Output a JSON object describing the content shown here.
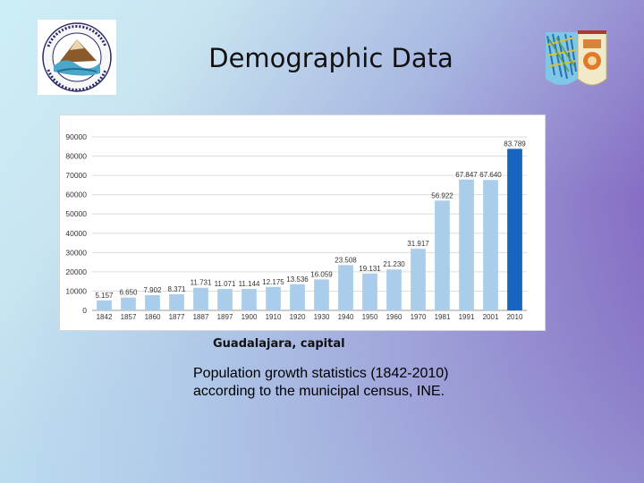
{
  "slide": {
    "title": "Demographic Data",
    "caption_city": "Guadalajara, capital",
    "caption_line1": "Population growth statistics (1842-2010)",
    "caption_line2": "according to the municipal census, INE."
  },
  "logos": {
    "left": "school-network-seal",
    "right": "guadalajara-coat-of-arms"
  },
  "colors": {
    "bar": "#aacdec",
    "bar_highlight": "#1865c0",
    "grid": "#dddddd",
    "axis_text": "#333333"
  },
  "chart_data": {
    "type": "bar",
    "categories": [
      "1842",
      "1857",
      "1860",
      "1877",
      "1887",
      "1897",
      "1900",
      "1910",
      "1920",
      "1930",
      "1940",
      "1950",
      "1960",
      "1970",
      "1981",
      "1991",
      "2001",
      "2010"
    ],
    "values": [
      5157,
      6650,
      7902,
      8371,
      11731,
      11071,
      11144,
      12175,
      13536,
      16059,
      23508,
      19131,
      21230,
      31917,
      56922,
      67847,
      67640,
      83789
    ],
    "value_labels": [
      "5.157",
      "6.650",
      "7.902",
      "8.371",
      "11.731",
      "11.071",
      "11.144",
      "12.175",
      "13.536",
      "16.059",
      "23.508",
      "19.131",
      "21.230",
      "31.917",
      "56.922",
      "67.847",
      "67.640",
      "83.789"
    ],
    "yticks": [
      0,
      10000,
      20000,
      30000,
      40000,
      50000,
      60000,
      70000,
      80000,
      90000
    ],
    "ylim": [
      0,
      90000
    ],
    "highlight_index": 17,
    "title": "",
    "xlabel": "",
    "ylabel": "",
    "grid": true
  }
}
